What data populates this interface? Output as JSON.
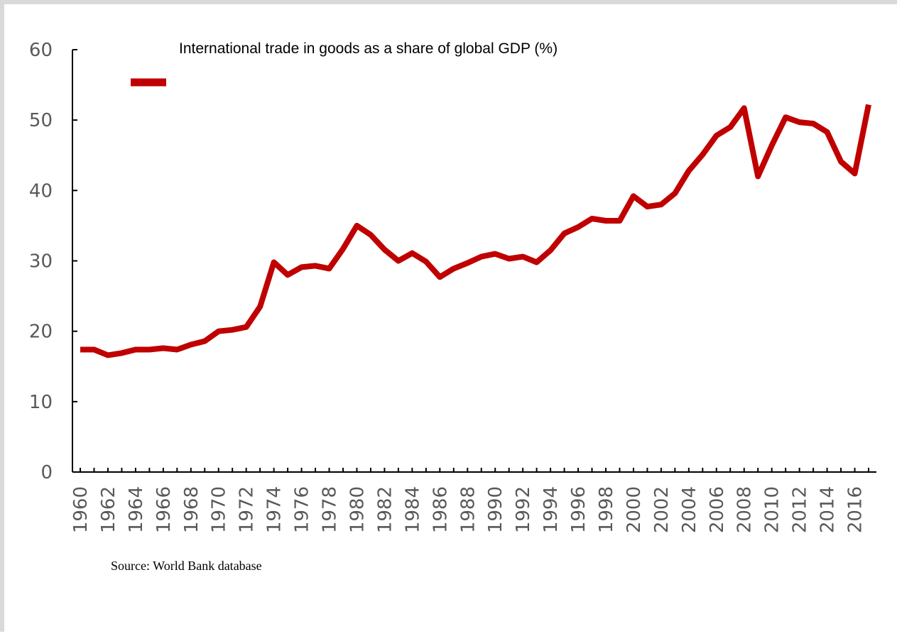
{
  "chart_data": {
    "type": "line",
    "title": "",
    "xlabel": "",
    "ylabel": "",
    "ylim": [
      0,
      60
    ],
    "y_ticks": [
      0,
      10,
      20,
      30,
      40,
      50,
      60
    ],
    "x": [
      1960,
      1961,
      1962,
      1963,
      1964,
      1965,
      1966,
      1967,
      1968,
      1969,
      1970,
      1971,
      1972,
      1973,
      1974,
      1975,
      1976,
      1977,
      1978,
      1979,
      1980,
      1981,
      1982,
      1983,
      1984,
      1985,
      1986,
      1987,
      1988,
      1989,
      1990,
      1991,
      1992,
      1993,
      1994,
      1995,
      1996,
      1997,
      1998,
      1999,
      2000,
      2001,
      2002,
      2003,
      2004,
      2005,
      2006,
      2007,
      2008,
      2009,
      2010,
      2011,
      2012,
      2013,
      2014,
      2015,
      2016,
      2017
    ],
    "x_tick_labels": [
      "1960",
      "1962",
      "1964",
      "1966",
      "1968",
      "1970",
      "1972",
      "1974",
      "1976",
      "1978",
      "1980",
      "1982",
      "1984",
      "1986",
      "1988",
      "1990",
      "1992",
      "1994",
      "1996",
      "1998",
      "2000",
      "2002",
      "2004",
      "2006",
      "2008",
      "2010",
      "2012",
      "2014",
      "2016"
    ],
    "series": [
      {
        "name": "International trade in goods as a share of global GDP (%)",
        "color": "#c00000",
        "values": [
          17.4,
          17.4,
          16.6,
          16.9,
          17.4,
          17.4,
          17.6,
          17.4,
          18.1,
          18.6,
          20.0,
          20.2,
          20.6,
          23.5,
          29.8,
          28.0,
          29.1,
          29.3,
          28.9,
          31.7,
          35.0,
          33.7,
          31.6,
          30.0,
          31.1,
          29.9,
          27.7,
          28.9,
          29.7,
          30.6,
          31.0,
          30.3,
          30.6,
          29.8,
          31.5,
          33.9,
          34.8,
          36.0,
          35.7,
          35.7,
          39.2,
          37.7,
          38.0,
          39.6,
          42.8,
          45.1,
          47.8,
          49.0,
          51.7,
          42.0,
          46.4,
          50.4,
          49.7,
          49.5,
          48.3,
          44.1,
          42.4,
          52.2
        ]
      }
    ],
    "legend_position": "top-left",
    "grid": false,
    "source_note": "Source: World Bank database"
  }
}
